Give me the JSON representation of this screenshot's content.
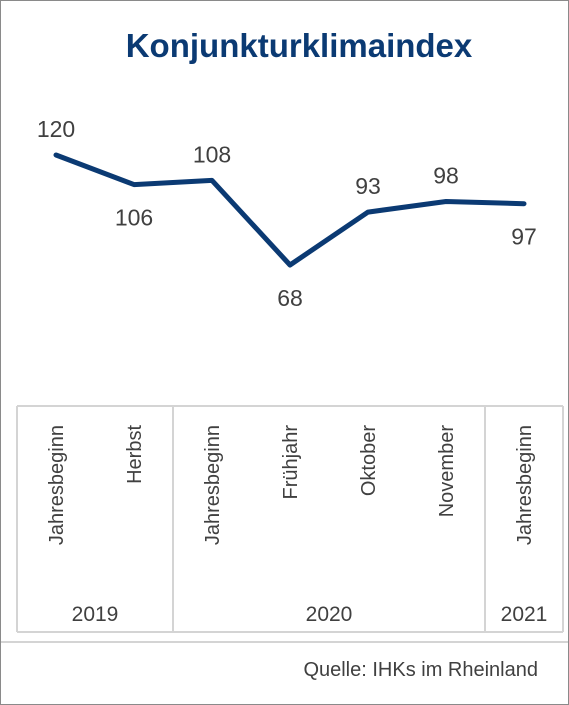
{
  "chart_data": {
    "type": "line",
    "title": "Konjunkturklimaindex",
    "categories": [
      "Jahresbeginn",
      "Herbst",
      "Jahresbeginn",
      "Frühjahr",
      "Oktober",
      "November",
      "Jahresbeginn"
    ],
    "groups": [
      {
        "label": "2019",
        "count": 2
      },
      {
        "label": "2020",
        "count": 4
      },
      {
        "label": "2021",
        "count": 1
      }
    ],
    "series": [
      {
        "values": [
          120,
          106,
          108,
          68,
          93,
          98,
          97
        ],
        "color": "#0b3a73"
      }
    ],
    "data_labels": [
      "120",
      "106",
      "108",
      "68",
      "93",
      "98",
      "97"
    ],
    "source": "Quelle: IHKs im Rheinland"
  }
}
